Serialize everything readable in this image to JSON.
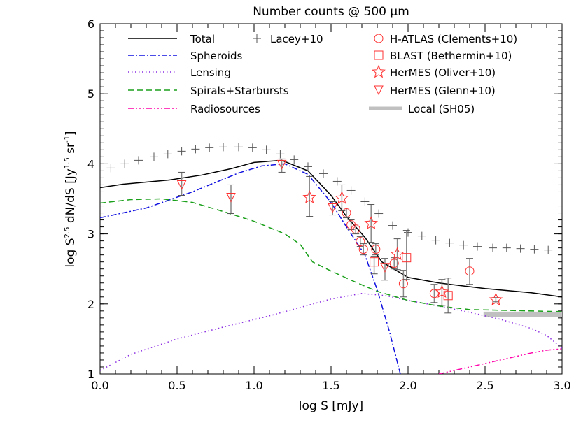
{
  "chart_data": {
    "type": "line",
    "title": "Number counts @ 500 μm",
    "xlabel": "log S [mJy]",
    "ylabel": {
      "base": "log S",
      "sup1": "2.5",
      "mid": " dN/dS [Jy",
      "sup2": "1.5",
      "mid2": " sr",
      "sup3": "-1",
      "end": "]"
    },
    "xlim": [
      0.0,
      3.0
    ],
    "ylim": [
      1,
      6
    ],
    "xticks": [
      "0.0",
      "0.5",
      "1.0",
      "1.5",
      "2.0",
      "2.5",
      "3.0"
    ],
    "yticks": [
      "1",
      "2",
      "3",
      "4",
      "5",
      "6"
    ],
    "grid": false,
    "legend_placement": "top",
    "models": [
      {
        "name": "Total",
        "color": "#000000",
        "dash": "solid",
        "x": [
          0,
          0.15,
          0.45,
          0.66,
          0.85,
          1.0,
          1.18,
          1.35,
          1.5,
          1.6,
          1.72,
          1.83,
          2.0,
          2.2,
          2.5,
          2.8,
          3.0
        ],
        "y": [
          3.66,
          3.71,
          3.77,
          3.84,
          3.93,
          4.02,
          4.05,
          3.9,
          3.55,
          3.25,
          2.95,
          2.6,
          2.38,
          2.3,
          2.22,
          2.16,
          2.1
        ]
      },
      {
        "name": "Spheroids",
        "color": "#1010e0",
        "dash": "dashdot",
        "x": [
          0,
          0.3,
          0.6,
          0.9,
          1.05,
          1.2,
          1.35,
          1.5,
          1.6,
          1.72,
          1.8,
          1.88,
          1.95
        ],
        "y": [
          3.23,
          3.37,
          3.6,
          3.87,
          3.97,
          4.0,
          3.85,
          3.45,
          3.1,
          2.7,
          2.2,
          1.6,
          1.0
        ]
      },
      {
        "name": "Lensing",
        "color": "#8a2be2",
        "dash": "dotted",
        "x": [
          0,
          0.2,
          0.5,
          0.8,
          1.1,
          1.35,
          1.5,
          1.7,
          1.85,
          2.0,
          2.2,
          2.4,
          2.6,
          2.8,
          2.9,
          3.0
        ],
        "y": [
          1.05,
          1.28,
          1.5,
          1.67,
          1.83,
          1.98,
          2.07,
          2.15,
          2.12,
          2.05,
          1.97,
          1.88,
          1.78,
          1.65,
          1.55,
          1.37
        ]
      },
      {
        "name": "Spirals+Starbursts",
        "color": "#1aa01a",
        "dash": "dashed",
        "x": [
          0,
          0.2,
          0.4,
          0.6,
          0.8,
          1.0,
          1.2,
          1.3,
          1.38,
          1.5,
          1.65,
          1.8,
          2.0,
          2.2,
          2.4,
          2.6,
          3.0
        ],
        "y": [
          3.44,
          3.49,
          3.5,
          3.45,
          3.32,
          3.18,
          3.0,
          2.85,
          2.6,
          2.47,
          2.32,
          2.18,
          2.05,
          1.97,
          1.92,
          1.91,
          1.89
        ]
      },
      {
        "name": "Radiosources",
        "color": "#ff00aa",
        "dash": "dashdotdotdot",
        "x": [
          2.2,
          2.4,
          2.6,
          2.8,
          2.9,
          3.0
        ],
        "y": [
          1.0,
          1.1,
          1.2,
          1.3,
          1.34,
          1.36
        ]
      }
    ],
    "lacey": {
      "name": "Lacey+10",
      "color": "#555555",
      "x": [
        0.07,
        0.16,
        0.25,
        0.35,
        0.44,
        0.53,
        0.62,
        0.71,
        0.8,
        0.9,
        0.99,
        1.08,
        1.17,
        1.26,
        1.35,
        1.45,
        1.54,
        1.63,
        1.72,
        1.81,
        1.9,
        2.0,
        2.09,
        2.18,
        2.27,
        2.36,
        2.45,
        2.55,
        2.64,
        2.73,
        2.82,
        2.91
      ],
      "y": [
        3.94,
        4.0,
        4.05,
        4.1,
        4.14,
        4.18,
        4.21,
        4.23,
        4.24,
        4.24,
        4.23,
        4.2,
        4.14,
        4.06,
        3.96,
        3.86,
        3.75,
        3.62,
        3.46,
        3.29,
        3.12,
        3.02,
        2.97,
        2.91,
        2.87,
        2.84,
        2.82,
        2.8,
        2.8,
        2.79,
        2.78,
        2.77
      ]
    },
    "observations": [
      {
        "name": "H-ATLAS (Clements+10)",
        "marker": "circle",
        "color": "#ff3030",
        "points": [
          [
            1.6,
            3.3,
            3.23,
            3.37
          ],
          [
            1.63,
            3.13,
            3.06,
            3.2
          ],
          [
            1.66,
            3.07,
            3.0,
            3.14
          ],
          [
            1.69,
            2.89,
            2.82,
            2.96
          ],
          [
            1.71,
            2.78,
            2.7,
            2.86
          ],
          [
            1.79,
            2.78,
            2.7,
            2.86
          ],
          [
            1.91,
            2.58,
            2.5,
            2.66
          ],
          [
            1.97,
            2.29,
            2.1,
            2.48
          ],
          [
            2.17,
            2.15,
            2.02,
            2.28
          ],
          [
            2.4,
            2.47,
            2.28,
            2.65
          ]
        ]
      },
      {
        "name": "BLAST (Bethermin+10)",
        "marker": "square",
        "color": "#ff3030",
        "points": [
          [
            1.78,
            2.6,
            2.43,
            2.68
          ],
          [
            1.99,
            2.66,
            2.35,
            3.05
          ],
          [
            2.26,
            2.12,
            1.87,
            2.37
          ]
        ]
      },
      {
        "name": "HerMES (Oliver+10)",
        "marker": "star",
        "color": "#ff3030",
        "points": [
          [
            1.36,
            3.52,
            3.25,
            3.82
          ],
          [
            1.57,
            3.51,
            3.33,
            3.7
          ],
          [
            1.76,
            3.15,
            2.88,
            3.42
          ],
          [
            1.93,
            2.71,
            2.49,
            2.93
          ],
          [
            2.22,
            2.17,
            1.98,
            2.35
          ],
          [
            2.57,
            2.06,
            2.03,
            2.09
          ]
        ]
      },
      {
        "name": "HerMES (Glenn+10)",
        "marker": "triangle-down",
        "color": "#ff3030",
        "points": [
          [
            0.53,
            3.7,
            3.55,
            3.88
          ],
          [
            0.85,
            3.52,
            3.29,
            3.7
          ],
          [
            1.18,
            3.99,
            3.88,
            4.07
          ],
          [
            1.51,
            3.37,
            3.27,
            3.46
          ],
          [
            1.85,
            2.52,
            2.34,
            2.65
          ]
        ]
      }
    ],
    "local": {
      "name": "Local (SH05)",
      "color": "#c0c0c0",
      "x": [
        2.49,
        3.0
      ],
      "y": 1.85
    }
  }
}
